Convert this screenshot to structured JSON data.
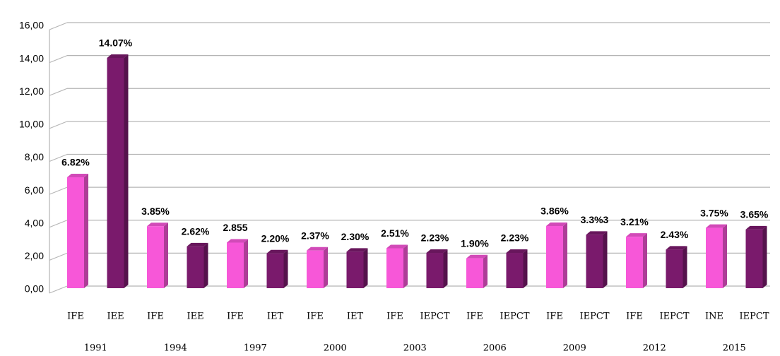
{
  "chart_data": {
    "type": "bar",
    "categories": [
      "IFE",
      "IEE",
      "IFE",
      "IEE",
      "IFE",
      "IET",
      "IFE",
      "IET",
      "IFE",
      "IEPCT",
      "IFE",
      "IEPCT",
      "IFE",
      "IEPCT",
      "IFE",
      "IEPCT",
      "INE",
      "IEPCT"
    ],
    "groups": [
      "1991",
      "1994",
      "1997",
      "2000",
      "2003",
      "2006",
      "2009",
      "2012",
      "2015"
    ],
    "values": [
      6.82,
      14.07,
      3.85,
      2.62,
      2.855,
      2.2,
      2.37,
      2.3,
      2.51,
      2.23,
      1.9,
      2.23,
      3.86,
      3.33,
      3.21,
      2.43,
      3.75,
      3.65
    ],
    "value_labels": [
      "6.82%",
      "14.07%",
      "3.85%",
      "2.62%",
      "2.855",
      "2.20%",
      "2.37%",
      "2.30%",
      "2.51%",
      "2.23%",
      "1.90%",
      "2.23%",
      "3.86%",
      "3.3%3",
      "3.21%",
      "2.43%",
      "3.75%",
      "3.65%"
    ],
    "palette": [
      "#f757d8",
      "#7a1a6c"
    ],
    "ylim": [
      0,
      16
    ],
    "yticks": [
      {
        "value": 0,
        "label": "0,00"
      },
      {
        "value": 2,
        "label": "2,00"
      },
      {
        "value": 4,
        "label": "4,00"
      },
      {
        "value": 6,
        "label": "6,00"
      },
      {
        "value": 8,
        "label": "8,00"
      },
      {
        "value": 10,
        "label": "10,00"
      },
      {
        "value": 12,
        "label": "12,00"
      },
      {
        "value": 14,
        "label": "14,00"
      },
      {
        "value": 16,
        "label": "16,00"
      }
    ],
    "grid": true
  }
}
